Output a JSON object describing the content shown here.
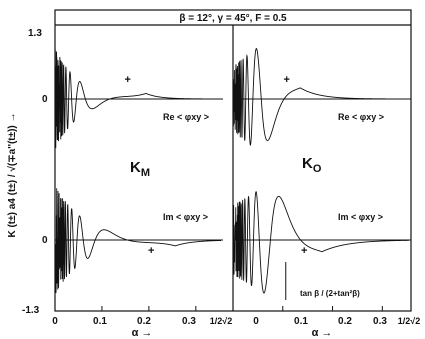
{
  "chart_data": {
    "type": "line",
    "header": "β = 12°, γ = 45°, F = 0.5",
    "ylabel": "K (t±) a4 (t±) / √(∓a''(t±)) →",
    "xlabel": "α →",
    "y_ticks_left": [
      "1.3",
      "0",
      "0",
      "-1.3"
    ],
    "x_ticks": [
      "0",
      "0.1",
      "0.2",
      "0.3",
      "1/2√2"
    ],
    "xlim": [
      0,
      0.3536
    ],
    "panels": [
      {
        "name": "KM",
        "label_main": "K",
        "label_sub": "M",
        "curves": [
          {
            "component": "Re",
            "label": "Re < φxy >",
            "marker": "+",
            "marker_alpha": 0.155,
            "zero_line": "0"
          },
          {
            "component": "Im",
            "label": "Im < φxy >",
            "marker": "+",
            "marker_alpha": 0.205,
            "zero_line": "0"
          }
        ]
      },
      {
        "name": "KO",
        "label_main": "K",
        "label_sub": "O",
        "annotation": "tan β / (2+tan²β)",
        "annotation_alpha": 0.106,
        "curves": [
          {
            "component": "Re",
            "label": "Re < φxy >",
            "marker": "+",
            "marker_alpha": 0.108
          },
          {
            "component": "Im",
            "label": "Im < φxy >",
            "marker": "+",
            "marker_alpha": 0.143
          }
        ]
      }
    ]
  }
}
